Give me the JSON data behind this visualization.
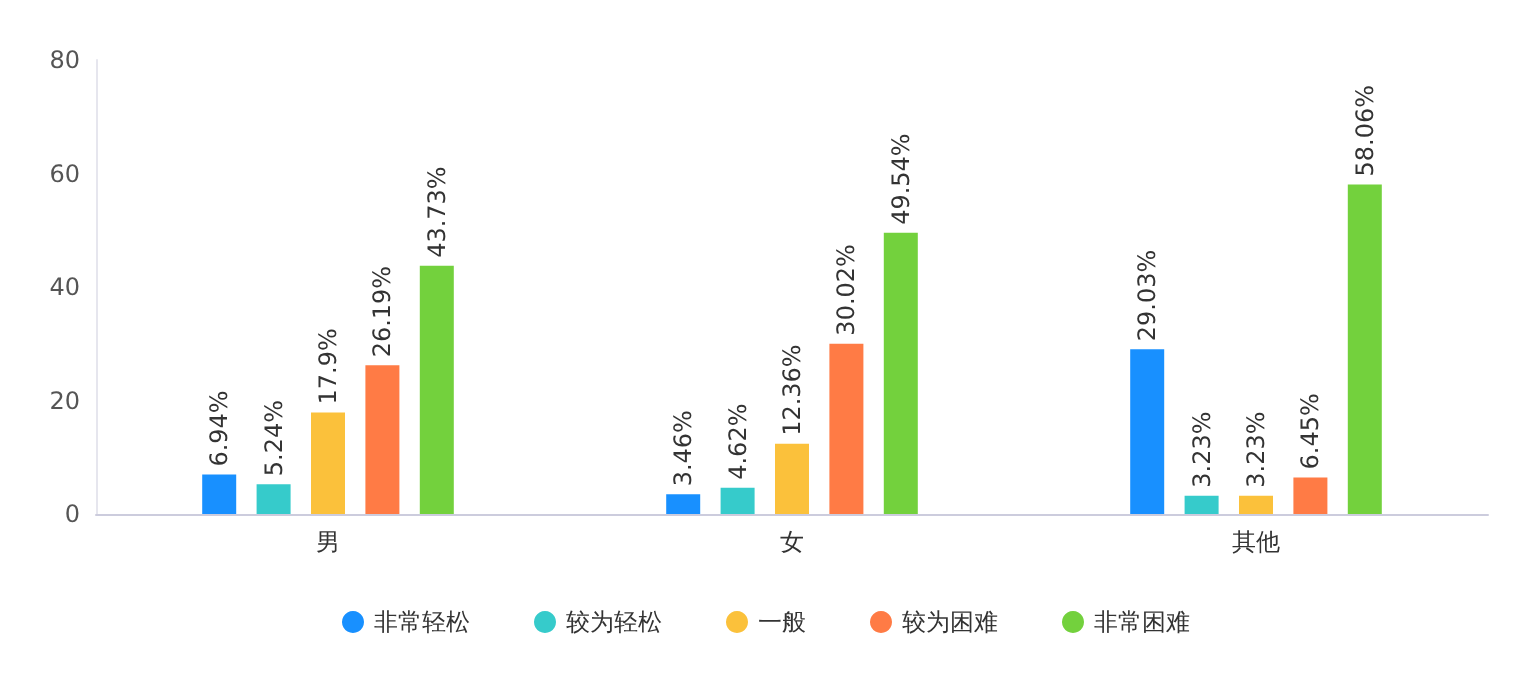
{
  "chart_data": {
    "type": "bar",
    "categories": [
      "男",
      "女",
      "其他"
    ],
    "series": [
      {
        "name": "非常轻松",
        "color": "#1890ff",
        "values": [
          6.94,
          3.46,
          29.03
        ],
        "value_labels": [
          "6.94%",
          "3.46%",
          "29.03%"
        ]
      },
      {
        "name": "较为轻松",
        "color": "#36cbcb",
        "values": [
          5.24,
          4.62,
          3.23
        ],
        "value_labels": [
          "5.24%",
          "4.62%",
          "3.23%"
        ]
      },
      {
        "name": "一般",
        "color": "#fbc13b",
        "values": [
          17.9,
          12.36,
          3.23
        ],
        "value_labels": [
          "17.9%",
          "12.36%",
          "3.23%"
        ]
      },
      {
        "name": "较为困难",
        "color": "#ff7b45",
        "values": [
          26.19,
          30.02,
          6.45
        ],
        "value_labels": [
          "26.19%",
          "30.02%",
          "6.45%"
        ]
      },
      {
        "name": "非常困难",
        "color": "#73d13d",
        "values": [
          43.73,
          49.54,
          58.06
        ],
        "value_labels": [
          "43.73%",
          "49.54%",
          "58.06%"
        ]
      }
    ],
    "ylim": [
      0,
      80
    ],
    "yticks": [
      0,
      20,
      40,
      60,
      80
    ],
    "grid": false,
    "legend": "bottom"
  }
}
